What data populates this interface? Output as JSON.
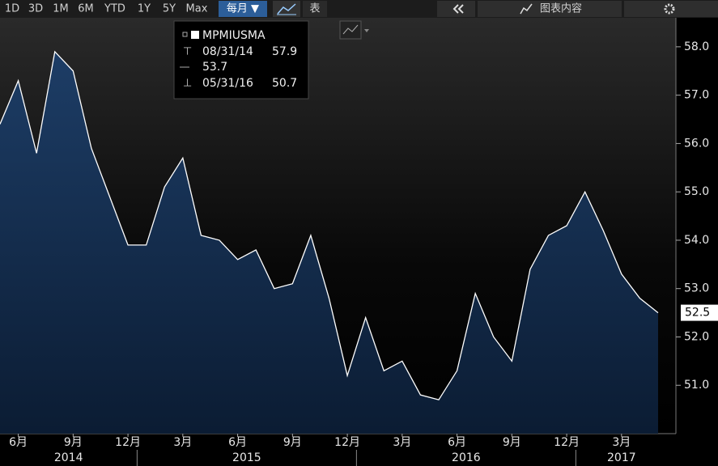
{
  "toolbar": {
    "ranges": [
      "1D",
      "3D",
      "1M",
      "6M",
      "YTD",
      "1Y",
      "5Y",
      "Max"
    ],
    "frequency": "每月 ▼",
    "table": "表",
    "chart_content": "图表内容"
  },
  "chart_data": {
    "type": "area",
    "legend": {
      "name": "MPMIUSMA",
      "high": {
        "date": "08/31/14",
        "value": 57.9
      },
      "average": 53.7,
      "low": {
        "date": "05/31/16",
        "value": 50.7
      }
    },
    "x": [
      "2014-05",
      "2014-06",
      "2014-07",
      "2014-08",
      "2014-09",
      "2014-10",
      "2014-11",
      "2014-12",
      "2015-01",
      "2015-02",
      "2015-03",
      "2015-04",
      "2015-05",
      "2015-06",
      "2015-07",
      "2015-08",
      "2015-09",
      "2015-10",
      "2015-11",
      "2015-12",
      "2016-01",
      "2016-02",
      "2016-03",
      "2016-04",
      "2016-05",
      "2016-06",
      "2016-07",
      "2016-08",
      "2016-09",
      "2016-10",
      "2016-11",
      "2016-12",
      "2017-01",
      "2017-02",
      "2017-03",
      "2017-04",
      "2017-05"
    ],
    "xticks": [
      {
        "value": "2014-06",
        "label": "6月"
      },
      {
        "value": "2014-09",
        "label": "9月"
      },
      {
        "value": "2014-12",
        "label": "12月"
      },
      {
        "value": "2015-03",
        "label": "3月"
      },
      {
        "value": "2015-06",
        "label": "6月"
      },
      {
        "value": "2015-09",
        "label": "9月"
      },
      {
        "value": "2015-12",
        "label": "12月"
      },
      {
        "value": "2016-03",
        "label": "3月"
      },
      {
        "value": "2016-06",
        "label": "6月"
      },
      {
        "value": "2016-09",
        "label": "9月"
      },
      {
        "value": "2016-12",
        "label": "12月"
      },
      {
        "value": "2017-03",
        "label": "3月"
      }
    ],
    "year_labels": [
      "2014",
      "2015",
      "2016",
      "2017"
    ],
    "series": [
      {
        "name": "MPMIUSMA",
        "color": "#ffffff",
        "fill": "#16335a",
        "values": [
          56.4,
          57.3,
          55.8,
          57.9,
          57.5,
          55.9,
          54.9,
          53.9,
          53.9,
          55.1,
          55.7,
          54.1,
          54.0,
          53.6,
          53.8,
          53.0,
          53.1,
          54.1,
          52.8,
          51.2,
          52.4,
          51.3,
          51.5,
          50.8,
          50.7,
          51.3,
          52.9,
          52.0,
          51.5,
          53.4,
          54.1,
          54.3,
          55.0,
          54.2,
          53.3,
          52.8,
          52.5
        ]
      }
    ],
    "ylim": [
      50.0,
      58.6
    ],
    "yticks": [
      {
        "value": 51,
        "label": "51.0"
      },
      {
        "value": 52,
        "label": "52.0"
      },
      {
        "value": 53,
        "label": "53.0"
      },
      {
        "value": 54,
        "label": "54.0"
      },
      {
        "value": 55,
        "label": "55.0"
      },
      {
        "value": 56,
        "label": "56.0"
      },
      {
        "value": 57,
        "label": "57.0"
      },
      {
        "value": 58,
        "label": "58.0"
      }
    ]
  }
}
